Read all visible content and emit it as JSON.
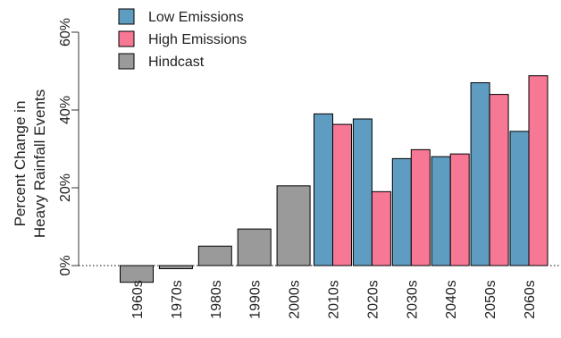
{
  "colors": {
    "low": "#5f9cc1",
    "high": "#f77894",
    "hindcast": "#9a9a9a",
    "axis": "#333333"
  },
  "chart_data": {
    "type": "bar",
    "title": "",
    "xlabel": "",
    "ylabel_line1": "Percent Change in",
    "ylabel_line2": "Heavy Rainfall Events",
    "ylim": [
      -5,
      60
    ],
    "yticks": [
      0,
      20,
      40,
      60
    ],
    "ytick_labels": [
      "0%",
      "20%",
      "40%",
      "60%"
    ],
    "categories": [
      "1960s",
      "1970s",
      "1980s",
      "1990s",
      "2000s",
      "2010s",
      "2020s",
      "2030s",
      "2040s",
      "2050s",
      "2060s"
    ],
    "legend_position": "top-left",
    "legend": [
      "Low Emissions",
      "High Emissions",
      "Hindcast"
    ],
    "series": [
      {
        "name": "Hindcast",
        "values": [
          -4.3,
          -0.8,
          5.0,
          9.4,
          20.5,
          null,
          null,
          null,
          null,
          null,
          null
        ]
      },
      {
        "name": "Low Emissions",
        "values": [
          null,
          null,
          null,
          null,
          null,
          39.0,
          37.7,
          27.5,
          28.0,
          47.0,
          34.5
        ]
      },
      {
        "name": "High Emissions",
        "values": [
          null,
          null,
          null,
          null,
          null,
          36.3,
          19.0,
          29.8,
          28.7,
          44.0,
          48.8
        ]
      }
    ]
  }
}
